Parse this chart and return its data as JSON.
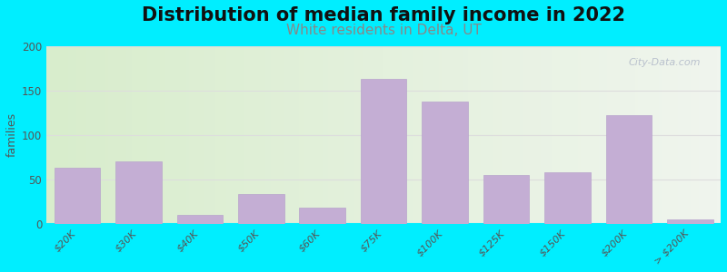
{
  "title": "Distribution of median family income in 2022",
  "subtitle": "White residents in Delta, UT",
  "ylabel": "families",
  "background_outer": "#00eeff",
  "bar_color": "#c4aed4",
  "bar_edge_color": "#b8a4cc",
  "categories": [
    "$20K",
    "$30K",
    "$40K",
    "$50K",
    "$60K",
    "$75K",
    "$100K",
    "$125K",
    "$150K",
    "$200K",
    "> $200K"
  ],
  "values": [
    63,
    70,
    10,
    33,
    18,
    163,
    137,
    55,
    58,
    122,
    5
  ],
  "ylim": [
    0,
    200
  ],
  "yticks": [
    0,
    50,
    100,
    150,
    200
  ],
  "title_fontsize": 15,
  "subtitle_fontsize": 11,
  "subtitle_color": "#888888",
  "watermark": "City-Data.com",
  "grid_color": "#dddddd",
  "bg_left_color": "#d8edcc",
  "bg_right_color": "#f0f5ee"
}
